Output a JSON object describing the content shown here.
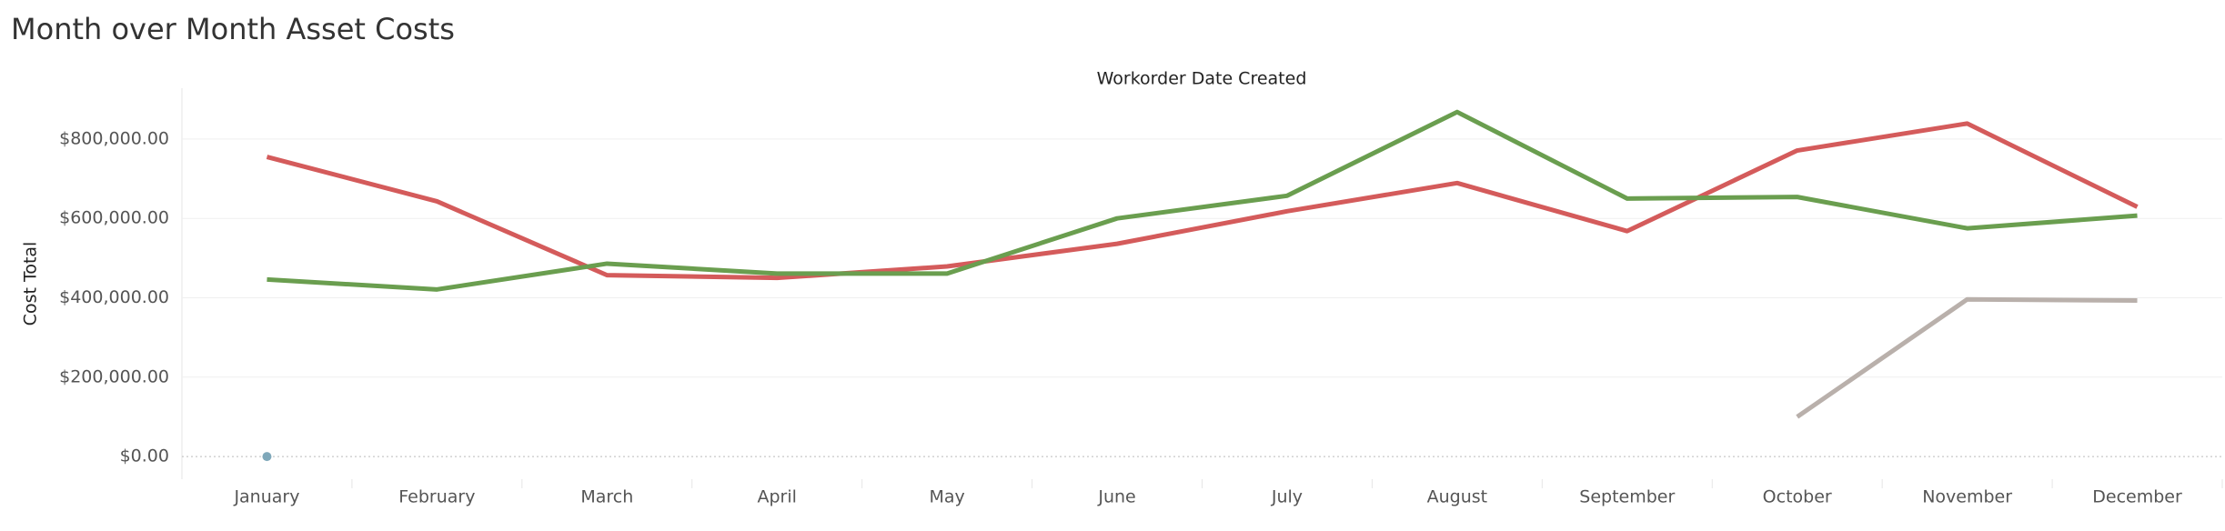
{
  "chart_data": {
    "type": "line",
    "title": "Month over Month Asset Costs",
    "x_label": "Workorder Date Created",
    "y_label": "Cost Total",
    "categories": [
      "January",
      "February",
      "March",
      "April",
      "May",
      "June",
      "July",
      "August",
      "September",
      "October",
      "November",
      "December"
    ],
    "series": [
      {
        "color": "#d45b5b",
        "values": [
          755000,
          643000,
          457000,
          450000,
          479000,
          536000,
          618000,
          689000,
          568000,
          771000,
          839000,
          629000
        ]
      },
      {
        "color": "#6a9e4f",
        "values": [
          446000,
          421000,
          486000,
          461000,
          461000,
          600000,
          657000,
          868000,
          650000,
          654000,
          575000,
          607000
        ]
      },
      {
        "color": "#b9b0ab",
        "values": [
          null,
          null,
          null,
          null,
          null,
          null,
          null,
          null,
          null,
          100000,
          396000,
          393000
        ]
      },
      {
        "color": "#7fa8ba",
        "values": [
          0,
          null,
          null,
          null,
          null,
          null,
          null,
          null,
          null,
          null,
          null,
          null
        ]
      }
    ],
    "ylim": [
      -57000,
      928000
    ],
    "yticks": [
      {
        "value": 0,
        "label": "$0.00"
      },
      {
        "value": 200000,
        "label": "$200,000.00"
      },
      {
        "value": 400000,
        "label": "$400,000.00"
      },
      {
        "value": 600000,
        "label": "$600,000.00"
      },
      {
        "value": 800000,
        "label": "$800,000.00"
      }
    ],
    "grid": true
  }
}
